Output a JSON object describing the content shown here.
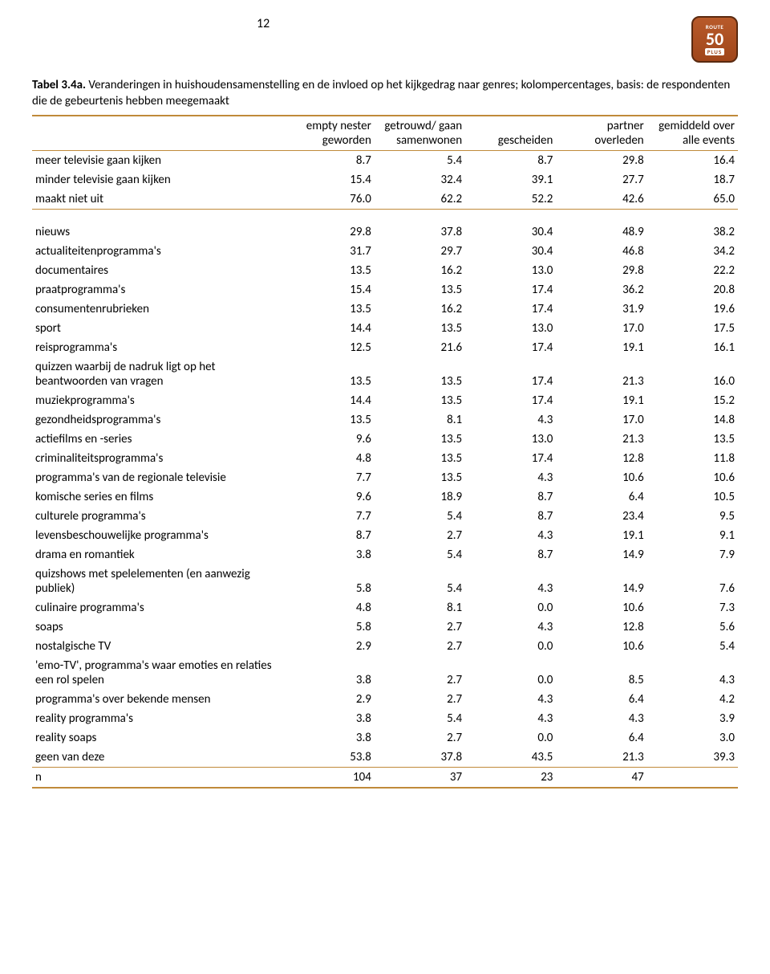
{
  "page_number": "12",
  "logo": {
    "line1": "ROUTE",
    "line2": "50",
    "line3": "PLUS"
  },
  "caption_bold": "Tabel 3.4a.",
  "caption_rest": " Veranderingen in huishoudensamenstelling en de invloed op het kijkgedrag naar genres; kolompercentages, basis: de respondenten die de gebeurtenis hebben meegemaakt",
  "table": {
    "border_color": "#c08a3a",
    "columns": [
      "empty nester geworden",
      "getrouwd/ gaan samenwonen",
      "gescheiden",
      "partner overleden",
      "gemiddeld over alle events"
    ],
    "section1": [
      {
        "label": "meer televisie gaan kijken",
        "vals": [
          "8.7",
          "5.4",
          "8.7",
          "29.8",
          "16.4"
        ]
      },
      {
        "label": "minder televisie gaan kijken",
        "vals": [
          "15.4",
          "32.4",
          "39.1",
          "27.7",
          "18.7"
        ]
      },
      {
        "label": "maakt niet uit",
        "vals": [
          "76.0",
          "62.2",
          "52.2",
          "42.6",
          "65.0"
        ]
      }
    ],
    "section2": [
      {
        "label": "nieuws",
        "vals": [
          "29.8",
          "37.8",
          "30.4",
          "48.9",
          "38.2"
        ]
      },
      {
        "label": "actualiteitenprogramma's",
        "vals": [
          "31.7",
          "29.7",
          "30.4",
          "46.8",
          "34.2"
        ]
      },
      {
        "label": "documentaires",
        "vals": [
          "13.5",
          "16.2",
          "13.0",
          "29.8",
          "22.2"
        ]
      },
      {
        "label": "praatprogramma's",
        "vals": [
          "15.4",
          "13.5",
          "17.4",
          "36.2",
          "20.8"
        ]
      },
      {
        "label": "consumentenrubrieken",
        "vals": [
          "13.5",
          "16.2",
          "17.4",
          "31.9",
          "19.6"
        ]
      },
      {
        "label": "sport",
        "vals": [
          "14.4",
          "13.5",
          "13.0",
          "17.0",
          "17.5"
        ]
      },
      {
        "label": "reisprogramma's",
        "vals": [
          "12.5",
          "21.6",
          "17.4",
          "19.1",
          "16.1"
        ]
      },
      {
        "label": "quizzen waarbij de nadruk ligt op het beantwoorden van vragen",
        "vals": [
          "13.5",
          "13.5",
          "17.4",
          "21.3",
          "16.0"
        ]
      },
      {
        "label": "muziekprogramma's",
        "vals": [
          "14.4",
          "13.5",
          "17.4",
          "19.1",
          "15.2"
        ]
      },
      {
        "label": "gezondheidsprogramma's",
        "vals": [
          "13.5",
          "8.1",
          "4.3",
          "17.0",
          "14.8"
        ]
      },
      {
        "label": "actiefilms en -series",
        "vals": [
          "9.6",
          "13.5",
          "13.0",
          "21.3",
          "13.5"
        ]
      },
      {
        "label": "criminaliteitsprogramma's",
        "vals": [
          "4.8",
          "13.5",
          "17.4",
          "12.8",
          "11.8"
        ]
      },
      {
        "label": "programma's van de regionale televisie",
        "vals": [
          "7.7",
          "13.5",
          "4.3",
          "10.6",
          "10.6"
        ]
      },
      {
        "label": "komische series en films",
        "vals": [
          "9.6",
          "18.9",
          "8.7",
          "6.4",
          "10.5"
        ]
      },
      {
        "label": "culturele programma's",
        "vals": [
          "7.7",
          "5.4",
          "8.7",
          "23.4",
          "9.5"
        ]
      },
      {
        "label": "levensbeschouwelijke programma's",
        "vals": [
          "8.7",
          "2.7",
          "4.3",
          "19.1",
          "9.1"
        ]
      },
      {
        "label": "drama en romantiek",
        "vals": [
          "3.8",
          "5.4",
          "8.7",
          "14.9",
          "7.9"
        ]
      },
      {
        "label": "quizshows met spelelementen (en aanwezig publiek)",
        "vals": [
          "5.8",
          "5.4",
          "4.3",
          "14.9",
          "7.6"
        ]
      },
      {
        "label": "culinaire programma's",
        "vals": [
          "4.8",
          "8.1",
          "0.0",
          "10.6",
          "7.3"
        ]
      },
      {
        "label": "soaps",
        "vals": [
          "5.8",
          "2.7",
          "4.3",
          "12.8",
          "5.6"
        ]
      },
      {
        "label": "nostalgische TV",
        "vals": [
          "2.9",
          "2.7",
          "0.0",
          "10.6",
          "5.4"
        ]
      },
      {
        "label": "'emo-TV', programma's waar emoties en relaties een rol spelen",
        "vals": [
          "3.8",
          "2.7",
          "0.0",
          "8.5",
          "4.3"
        ]
      },
      {
        "label": "programma's over bekende mensen",
        "vals": [
          "2.9",
          "2.7",
          "4.3",
          "6.4",
          "4.2"
        ]
      },
      {
        "label": "reality programma's",
        "vals": [
          "3.8",
          "5.4",
          "4.3",
          "4.3",
          "3.9"
        ]
      },
      {
        "label": "reality soaps",
        "vals": [
          "3.8",
          "2.7",
          "0.0",
          "6.4",
          "3.0"
        ]
      },
      {
        "label": "geen van deze",
        "vals": [
          "53.8",
          "37.8",
          "43.5",
          "21.3",
          "39.3"
        ]
      }
    ],
    "footer": {
      "label": "n",
      "vals": [
        "104",
        "37",
        "23",
        "47",
        ""
      ]
    }
  }
}
